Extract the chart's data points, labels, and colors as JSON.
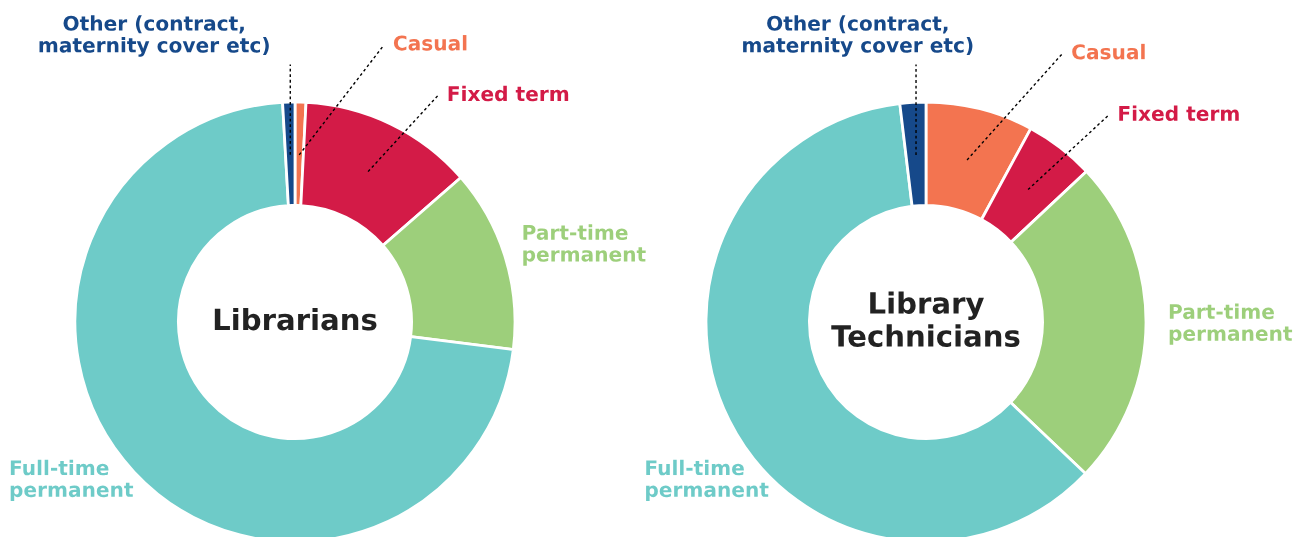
{
  "chart_data": [
    {
      "type": "donut",
      "title": "Librarians",
      "categories": [
        "Casual",
        "Fixed term",
        "Part-time permanent",
        "Full-time permanent",
        "Other (contract, maternity cover etc)"
      ],
      "values": [
        0.8,
        12.8,
        13.4,
        72.1,
        0.9
      ],
      "colors": [
        "#f37450",
        "#d31b47",
        "#9dcf7b",
        "#6ecbc8",
        "#16498a"
      ]
    },
    {
      "type": "donut",
      "title": "Library Technicians",
      "categories": [
        "Casual",
        "Fixed term",
        "Part-time permanent",
        "Full-time permanent",
        "Other (contract, maternity cover etc)"
      ],
      "values": [
        7.9,
        5.1,
        24.1,
        61.0,
        1.9
      ],
      "colors": [
        "#f37450",
        "#d31b47",
        "#9dcf7b",
        "#6ecbc8",
        "#16498a"
      ]
    }
  ]
}
